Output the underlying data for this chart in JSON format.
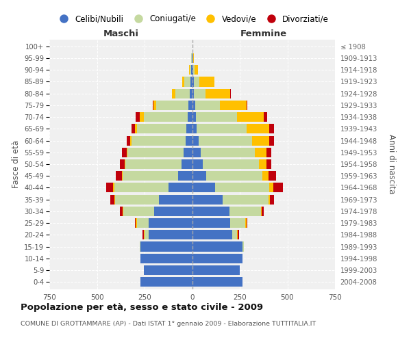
{
  "age_groups": [
    "0-4",
    "5-9",
    "10-14",
    "15-19",
    "20-24",
    "25-29",
    "30-34",
    "35-39",
    "40-44",
    "45-49",
    "50-54",
    "55-59",
    "60-64",
    "65-69",
    "70-74",
    "75-79",
    "80-84",
    "85-89",
    "90-94",
    "95-99",
    "100+"
  ],
  "birth_years": [
    "2004-2008",
    "1999-2003",
    "1994-1998",
    "1989-1993",
    "1984-1988",
    "1979-1983",
    "1974-1978",
    "1969-1973",
    "1964-1968",
    "1959-1963",
    "1954-1958",
    "1949-1953",
    "1944-1948",
    "1939-1943",
    "1934-1938",
    "1929-1933",
    "1924-1928",
    "1919-1923",
    "1914-1918",
    "1909-1913",
    "≤ 1908"
  ],
  "male": {
    "celibi": [
      270,
      255,
      270,
      270,
      230,
      230,
      200,
      175,
      125,
      75,
      55,
      45,
      35,
      30,
      25,
      18,
      12,
      8,
      4,
      2,
      0
    ],
    "coniugati": [
      0,
      0,
      0,
      5,
      20,
      60,
      160,
      230,
      285,
      290,
      295,
      295,
      285,
      260,
      230,
      170,
      75,
      35,
      8,
      2,
      0
    ],
    "vedovi": [
      0,
      0,
      0,
      0,
      5,
      5,
      5,
      5,
      5,
      5,
      5,
      5,
      5,
      10,
      20,
      15,
      20,
      10,
      3,
      0,
      0
    ],
    "divorziati": [
      0,
      0,
      0,
      0,
      5,
      5,
      15,
      20,
      35,
      30,
      25,
      25,
      20,
      20,
      20,
      5,
      0,
      0,
      0,
      0,
      0
    ]
  },
  "female": {
    "nubili": [
      265,
      250,
      265,
      265,
      210,
      200,
      195,
      160,
      120,
      75,
      55,
      45,
      35,
      25,
      20,
      15,
      10,
      8,
      4,
      2,
      0
    ],
    "coniugate": [
      0,
      0,
      0,
      5,
      25,
      80,
      165,
      240,
      285,
      295,
      295,
      285,
      280,
      260,
      215,
      130,
      60,
      28,
      8,
      3,
      0
    ],
    "vedove": [
      0,
      0,
      0,
      0,
      5,
      5,
      5,
      10,
      20,
      30,
      40,
      60,
      90,
      120,
      140,
      140,
      130,
      80,
      20,
      5,
      0
    ],
    "divorziate": [
      0,
      0,
      0,
      0,
      5,
      5,
      10,
      20,
      50,
      40,
      25,
      25,
      25,
      25,
      20,
      5,
      5,
      0,
      0,
      0,
      0
    ]
  },
  "colors": {
    "celibi": "#4472c4",
    "coniugati": "#c5d9a0",
    "vedovi": "#ffc000",
    "divorziati": "#c0000b"
  },
  "xlim": 750,
  "title": "Popolazione per età, sesso e stato civile - 2009",
  "subtitle": "COMUNE DI GROTTAMMARE (AP) - Dati ISTAT 1° gennaio 2009 - Elaborazione TUTTITALIA.IT",
  "ylabel_left": "Fasce di età",
  "ylabel_right": "Anni di nascita",
  "xlabel_left": "Maschi",
  "xlabel_right": "Femmine",
  "bg_color": "#f0f0f0",
  "grid_color": "#cccccc",
  "legend_labels": [
    "Celibi/Nubili",
    "Coniugati/e",
    "Vedovi/e",
    "Divorziati/e"
  ]
}
